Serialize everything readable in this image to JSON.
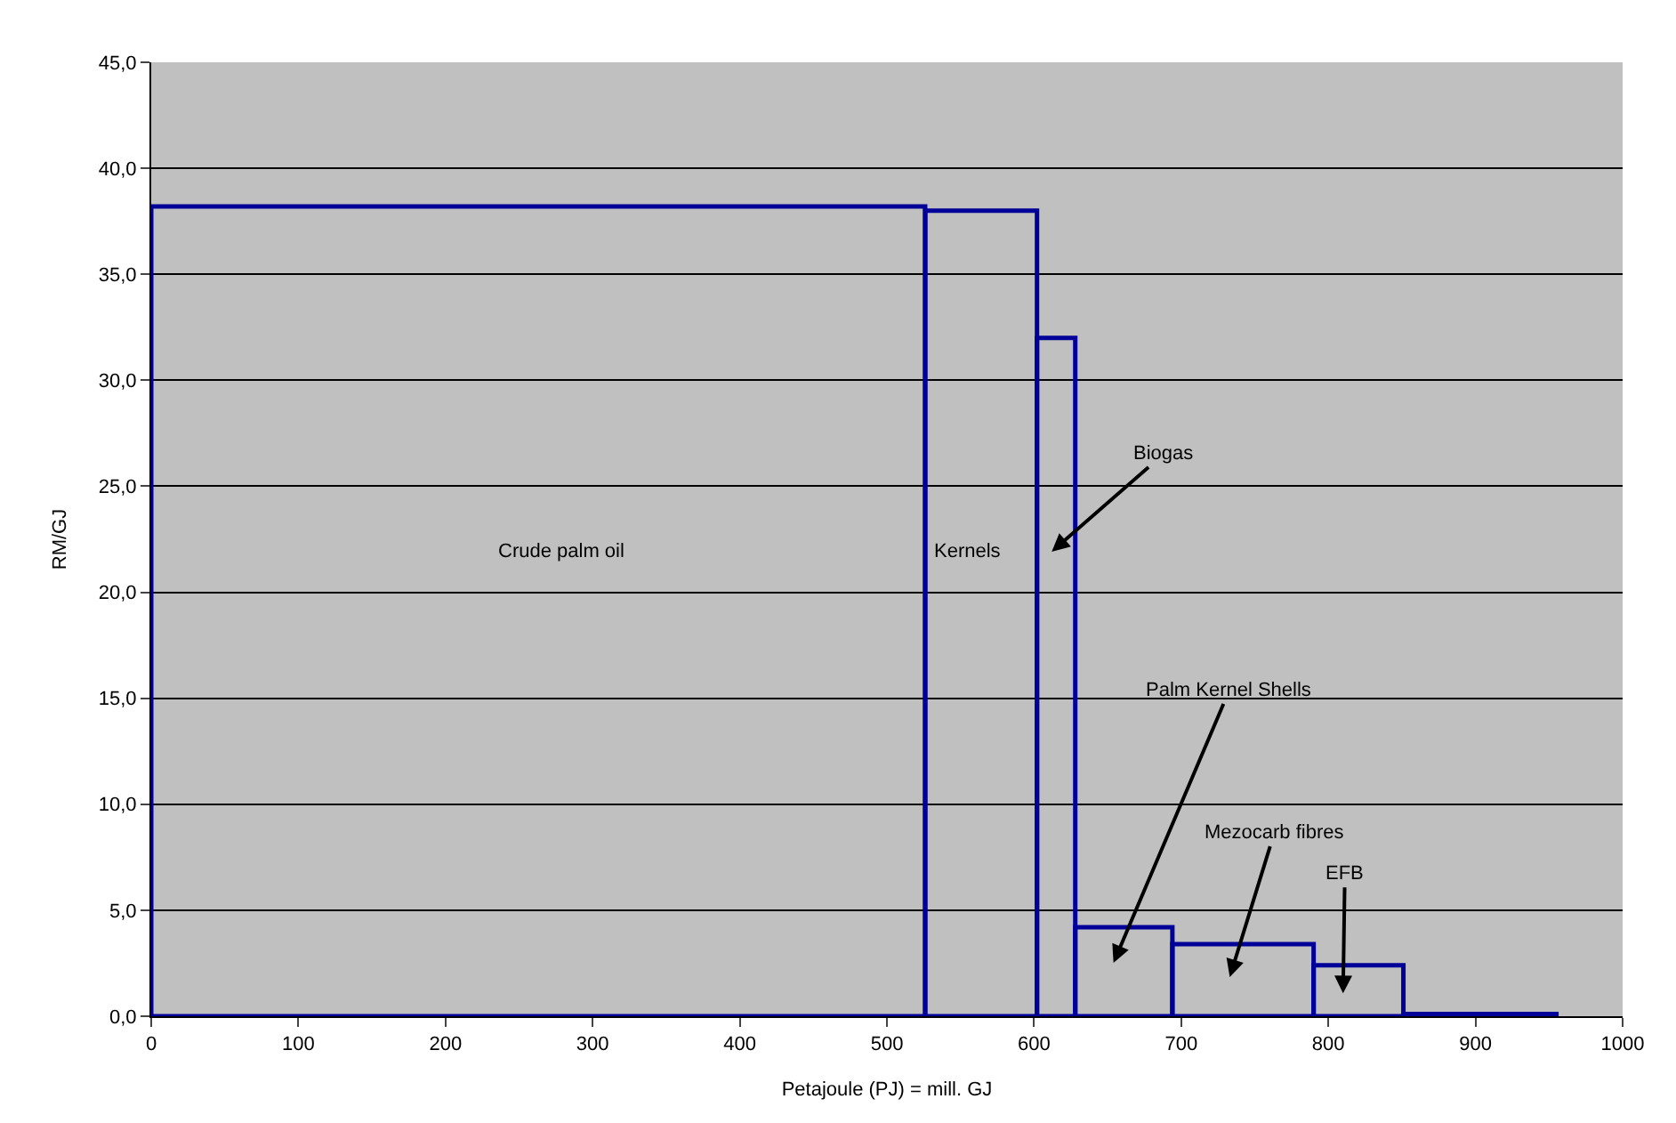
{
  "chart_data": {
    "type": "histogram",
    "xlabel": "Petajoule (PJ) = mill. GJ",
    "ylabel": "RM/GJ",
    "bins": [
      0,
      526,
      602,
      628,
      694,
      790,
      851,
      955
    ],
    "values": [
      38.2,
      38.0,
      32.0,
      4.2,
      3.4,
      2.4,
      0.1
    ],
    "color": "#000099",
    "xlim": [
      0,
      1000
    ],
    "xticks": [
      0,
      100,
      200,
      300,
      400,
      500,
      600,
      700,
      800,
      900,
      1000
    ],
    "ylim": [
      0,
      45
    ],
    "yticks": [
      {
        "value": 0,
        "label": "0,0"
      },
      {
        "value": 5,
        "label": "5,0"
      },
      {
        "value": 10,
        "label": "10,0"
      },
      {
        "value": 15,
        "label": "15,0"
      },
      {
        "value": 20,
        "label": "20,0"
      },
      {
        "value": 25,
        "label": "25,0"
      },
      {
        "value": 30,
        "label": "30,0"
      },
      {
        "value": 35,
        "label": "35,0"
      },
      {
        "value": 40,
        "label": "40,0"
      },
      {
        "value": 45,
        "label": "45,0"
      }
    ],
    "grid": "y",
    "annotations": [
      "Crude palm oil",
      "Kernels",
      "Biogas",
      "Palm Kernel Shells",
      "Mezocarb fibres",
      "EFB"
    ]
  }
}
